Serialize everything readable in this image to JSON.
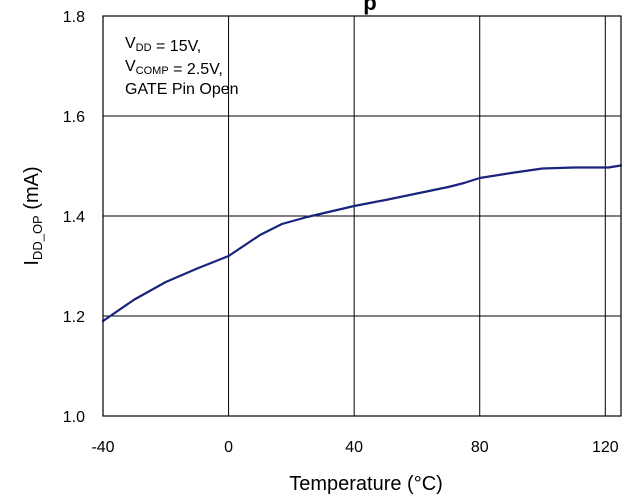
{
  "chart_data": {
    "type": "line",
    "title_fragment": "p",
    "xlabel": "Temperature (°C)",
    "ylabel": {
      "base": "I",
      "sub": "DD_OP",
      "unit": " (mA)"
    },
    "xlim": [
      -40,
      125
    ],
    "ylim": [
      1.0,
      1.8
    ],
    "xticks": [
      -40,
      0,
      40,
      80,
      120
    ],
    "yticks": [
      1.0,
      1.2,
      1.4,
      1.6,
      1.8
    ],
    "xtick_labels": [
      "-40",
      "0",
      "40",
      "80",
      "120"
    ],
    "ytick_labels": [
      "1.0",
      "1.2",
      "1.4",
      "1.6",
      "1.8"
    ],
    "grid": true,
    "series_color": "#1a237e",
    "annotation": [
      {
        "parts": [
          {
            "t": "V"
          },
          {
            "t": "DD",
            "sub": true
          },
          {
            "t": " =  15V,"
          }
        ]
      },
      {
        "parts": [
          {
            "t": "V"
          },
          {
            "t": "COMP",
            "sub": true
          },
          {
            "t": " = 2.5V,"
          }
        ]
      },
      {
        "parts": [
          {
            "t": "GATE Pin Open"
          }
        ]
      }
    ],
    "series": [
      {
        "x": [
          -40,
          -30,
          -20,
          -10,
          0,
          10,
          17,
          25,
          40,
          50,
          60,
          70,
          75,
          80,
          90,
          100,
          110,
          121,
          125
        ],
        "y": [
          1.19,
          1.233,
          1.268,
          1.295,
          1.32,
          1.362,
          1.384,
          1.398,
          1.42,
          1.432,
          1.445,
          1.458,
          1.466,
          1.476,
          1.486,
          1.495,
          1.497,
          1.497,
          1.501
        ]
      }
    ]
  }
}
